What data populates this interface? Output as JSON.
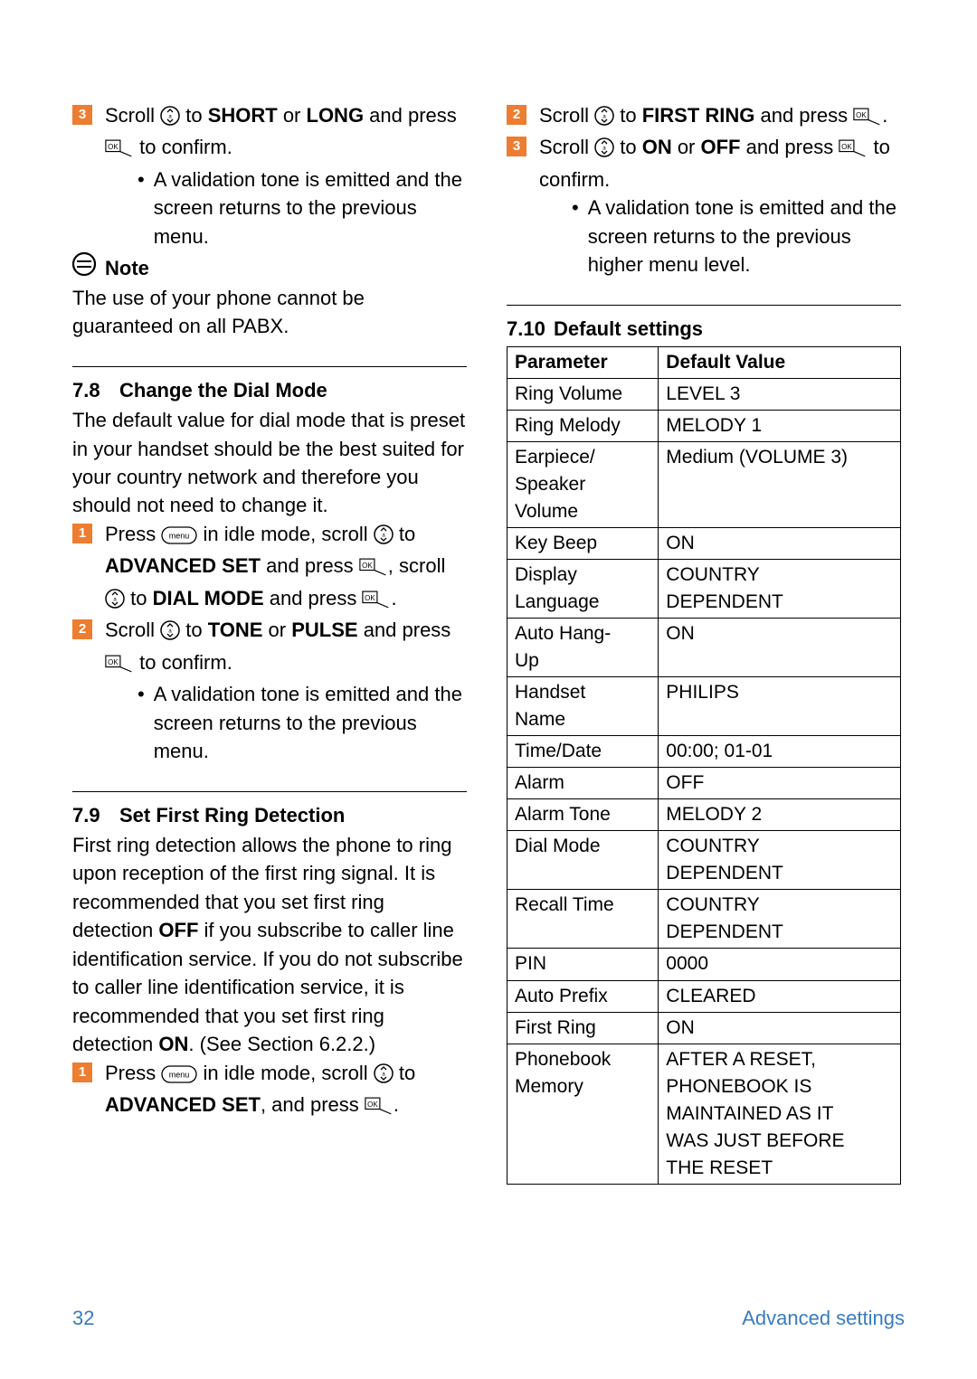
{
  "colors": {
    "step_marker_bg": "#ed7d31",
    "step_marker_fg": "#ffffff",
    "text": "#000000",
    "background": "#ffffff",
    "footer": "#3a7bbf"
  },
  "fontsize": {
    "body": 22,
    "step_marker": 15,
    "table": 21
  },
  "left": {
    "step3": {
      "num": "3",
      "line": "Scroll ",
      "bold1": "SHORT",
      "mid": " or ",
      "bold2": "LONG",
      "after": " and press ",
      "end": " to confirm.",
      "bullet": "A validation tone is emitted and the screen returns to the previous menu."
    },
    "note": {
      "label": "Note",
      "text": "The use of your phone cannot be guaranteed on all PABX."
    },
    "s78": {
      "num": "7.8",
      "title": "Change the Dial Mode",
      "intro": "The default value for dial mode that is preset in your handset should be the best suited for your country network and therefore you should not need to change it.",
      "step1": {
        "num": "1",
        "a": "Press ",
        "b": " in idle mode, scroll ",
        "c": " to ",
        "bold1": "ADVANCED SET",
        "d": " and press ",
        "e": ", scroll ",
        "f": " to ",
        "bold2": "DIAL MODE",
        "g": " and press ",
        "h": "."
      },
      "step2": {
        "num": "2",
        "a": "Scroll ",
        "b": " to ",
        "bold1": "TONE",
        "c": " or ",
        "bold2": "PULSE",
        "d": " and press ",
        "e": " to confirm.",
        "bullet": "A validation tone is emitted and the screen returns to the previous menu."
      }
    },
    "s79": {
      "num": "7.9",
      "title": "Set First Ring Detection",
      "intro_a": "First ring detection allows the phone to ring upon reception of the first ring signal. It is recommended that you set first ring detection ",
      "bold_off": "OFF",
      "intro_b": " if you subscribe to caller line identification service. If you do not subscribe to caller line identification service, it is recommended that you set first ring detection ",
      "bold_on": "ON",
      "intro_c": ". (See Section 6.2.2.)",
      "step1": {
        "num": "1",
        "a": "Press ",
        "b": " in idle mode, scroll ",
        "c": " to ",
        "bold1": "ADVANCED SET",
        "d": ", and press ",
        "e": "."
      }
    }
  },
  "right": {
    "step2": {
      "num": "2",
      "a": "Scroll ",
      "b": " to ",
      "bold1": "FIRST RING",
      "c": " and press ",
      "d": "."
    },
    "step3": {
      "num": "3",
      "a": "Scroll ",
      "b": " to ",
      "bold1": "ON",
      "c": " or ",
      "bold2": "OFF",
      "d": " and press ",
      "e": " to confirm.",
      "bullet": "A validation tone is emitted and the screen returns to the previous higher menu level."
    },
    "s710": {
      "num": "7.10",
      "title": "Default settings",
      "th_param": "Parameter",
      "th_value": "Default Value",
      "rows": [
        {
          "p": "Ring Volume",
          "v": "LEVEL 3"
        },
        {
          "p": "Ring Melody",
          "v": "MELODY 1"
        },
        {
          "p": "Earpiece/\nSpeaker\nVolume",
          "v": "Medium (VOLUME 3)"
        },
        {
          "p": "Key Beep",
          "v": "ON"
        },
        {
          "p": "Display\nLanguage",
          "v": "COUNTRY\nDEPENDENT"
        },
        {
          "p": "Auto Hang-\nUp",
          "v": "ON"
        },
        {
          "p": "Handset\nName",
          "v": "PHILIPS"
        },
        {
          "p": "Time/Date",
          "v": "00:00; 01-01"
        },
        {
          "p": "Alarm",
          "v": "OFF"
        },
        {
          "p": "Alarm Tone",
          "v": "MELODY 2"
        },
        {
          "p": "Dial Mode",
          "v": "COUNTRY\nDEPENDENT"
        },
        {
          "p": "Recall Time",
          "v": "COUNTRY\nDEPENDENT"
        },
        {
          "p": "PIN",
          "v": "0000"
        },
        {
          "p": "Auto Prefix",
          "v": "CLEARED"
        },
        {
          "p": "First Ring",
          "v": "ON"
        },
        {
          "p": "Phonebook\nMemory",
          "v": "AFTER A RESET,\nPHONEBOOK IS\nMAINTAINED AS IT\nWAS JUST BEFORE\nTHE RESET"
        }
      ]
    }
  },
  "footer": {
    "page": "32",
    "title": "Advanced settings"
  }
}
